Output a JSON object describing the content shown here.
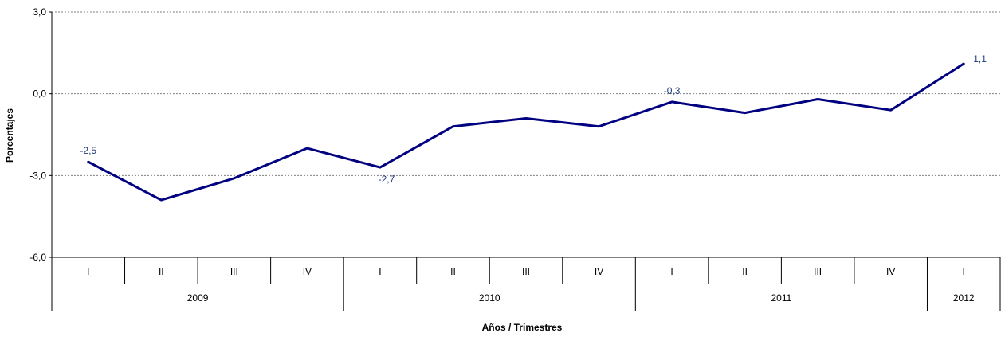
{
  "chart_data": {
    "type": "line",
    "title": "",
    "xlabel": "Años / Trimestres",
    "ylabel": "Porcentajes",
    "ylim": [
      -6.0,
      3.0
    ],
    "y_ticks": [
      "3,0",
      "0,0",
      "-3,0",
      "-6,0"
    ],
    "y_tick_values": [
      3.0,
      0.0,
      -3.0,
      -6.0
    ],
    "grid": true,
    "categories": [
      "I",
      "II",
      "III",
      "IV",
      "I",
      "II",
      "III",
      "IV",
      "I",
      "II",
      "III",
      "IV",
      "I"
    ],
    "years": [
      {
        "label": "2009",
        "quarters": 4
      },
      {
        "label": "2010",
        "quarters": 4
      },
      {
        "label": "2011",
        "quarters": 4
      },
      {
        "label": "2012",
        "quarters": 1
      }
    ],
    "series": [
      {
        "values": [
          -2.5,
          -3.9,
          -3.1,
          -2.0,
          -2.7,
          -1.2,
          -0.9,
          -1.2,
          -0.3,
          -0.7,
          -0.2,
          -0.6,
          1.1
        ]
      }
    ],
    "data_labels": [
      {
        "index": 0,
        "text": "-2,5"
      },
      {
        "index": 4,
        "text": "-2,7"
      },
      {
        "index": 8,
        "text": "-0,3"
      },
      {
        "index": 12,
        "text": "1,1"
      }
    ],
    "colors": {
      "line": "#000080",
      "label": "#1F3A7A",
      "grid": "#808080",
      "axis": "#000000"
    }
  }
}
